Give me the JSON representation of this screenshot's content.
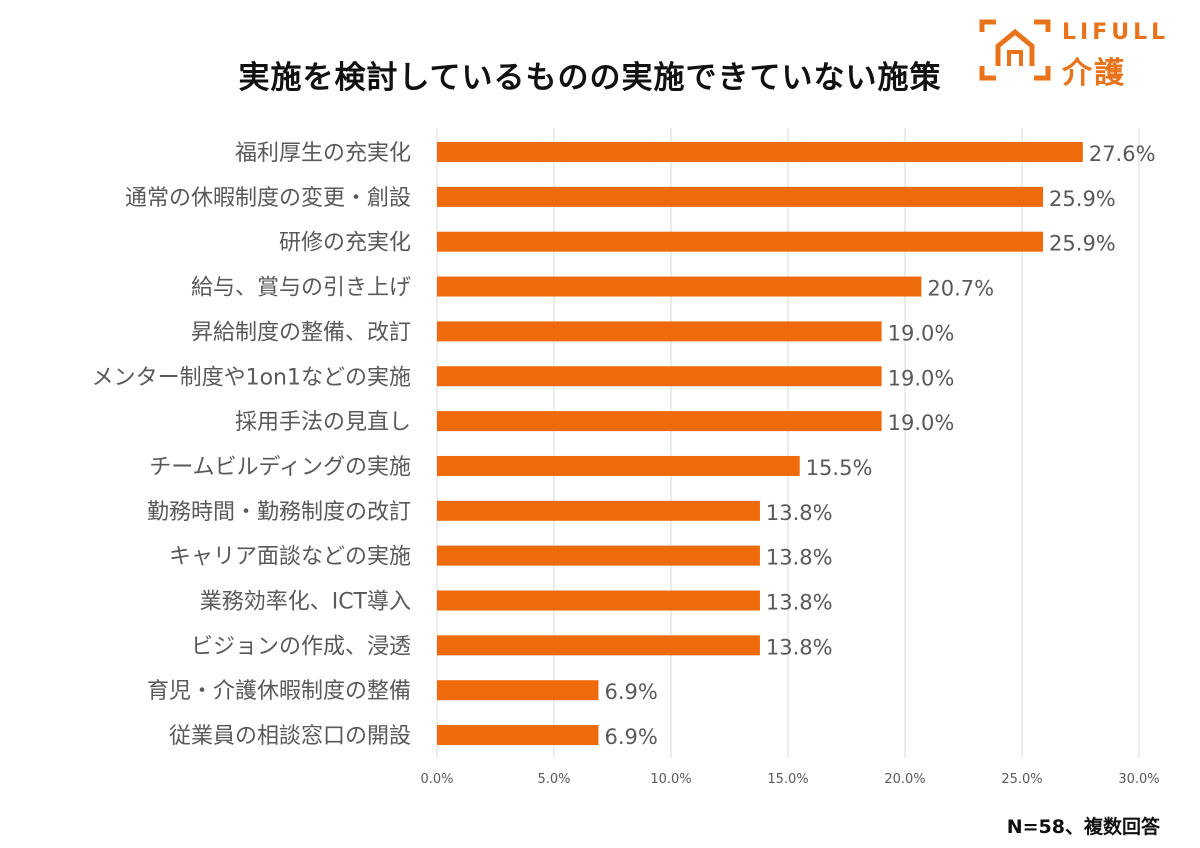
{
  "title": "実施を検討しているものの実施できていない施策",
  "logo": {
    "brand": "LIFULL",
    "sub": "介護"
  },
  "footnote": "N=58、複数回答",
  "colors": {
    "bar": "#ee6a0a",
    "grid": "#d9d9d9",
    "label": "#595959",
    "logo": "#e8731b"
  },
  "chart_data": {
    "type": "bar",
    "orientation": "horizontal",
    "title": "実施を検討しているものの実施できていない施策",
    "categories": [
      "福利厚生の充実化",
      "通常の休暇制度の変更・創設",
      "研修の充実化",
      "給与、賞与の引き上げ",
      "昇給制度の整備、改訂",
      "メンター制度や1on1などの実施",
      "採用手法の見直し",
      "チームビルディングの実施",
      "勤務時間・勤務制度の改訂",
      "キャリア面談などの実施",
      "業務効率化、ICT導入",
      "ビジョンの作成、浸透",
      "育児・介護休暇制度の整備",
      "従業員の相談窓口の開設"
    ],
    "values": [
      27.6,
      25.9,
      25.9,
      20.7,
      19.0,
      19.0,
      19.0,
      15.5,
      13.8,
      13.8,
      13.8,
      13.8,
      6.9,
      6.9
    ],
    "value_labels": [
      "27.6%",
      "25.9%",
      "25.9%",
      "20.7%",
      "19.0%",
      "19.0%",
      "19.0%",
      "15.5%",
      "13.8%",
      "13.8%",
      "13.8%",
      "13.8%",
      "6.9%",
      "6.9%"
    ],
    "xlim": [
      0,
      30
    ],
    "xticks": [
      0,
      5,
      10,
      15,
      20,
      25,
      30
    ],
    "xtick_labels": [
      "0.0%",
      "5.0%",
      "10.0%",
      "15.0%",
      "20.0%",
      "25.0%",
      "30.0%"
    ],
    "xlabel": "",
    "ylabel": "",
    "grid": true,
    "legend": "none"
  }
}
